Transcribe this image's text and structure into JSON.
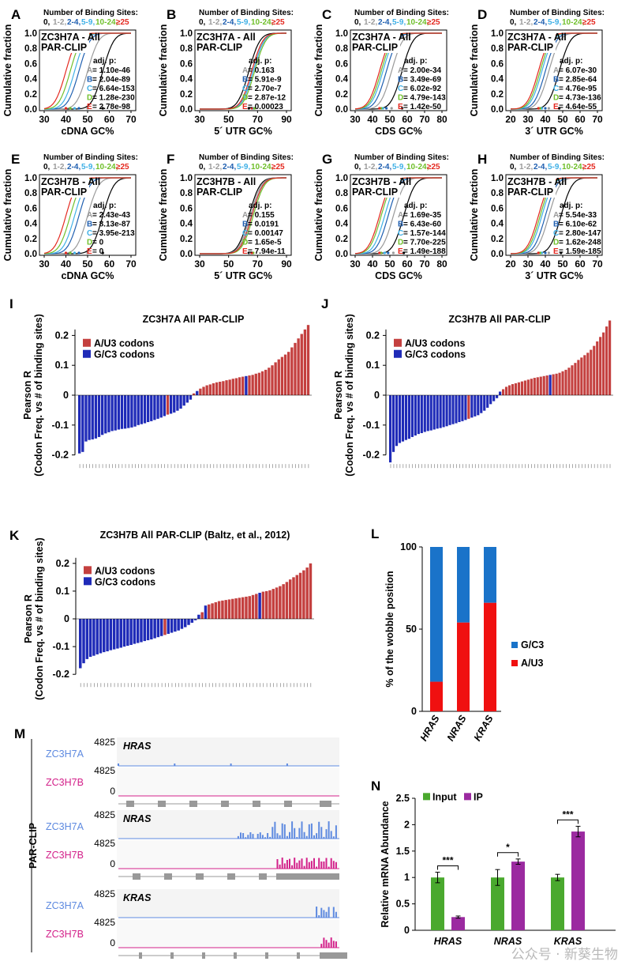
{
  "colors": {
    "zero": "#000000",
    "g1": "#9a9a9a",
    "g2": "#1f5fb0",
    "g3": "#3fb0e6",
    "g4": "#6fbf2a",
    "g5": "#e4281f",
    "red": "#c4403f",
    "blue": "#1f2bb8",
    "a_color": "#5e8ae0",
    "b_color": "#d3218a",
    "inputGreen": "#4aa92e",
    "ipPurple": "#9b2aa0",
    "stackBlue": "#1a73c9",
    "stackRed": "#f01010"
  },
  "cdf_panels": [
    {
      "id": "A",
      "label": "A",
      "legend_title": "Number of Binding Sites:",
      "legend_items": [
        "0,",
        "1-2,",
        "2-4,",
        "5-9,",
        "10-24,",
        "≥25"
      ],
      "title_lines": [
        "ZC3H7A - All",
        "PAR-CLIP"
      ],
      "xlabel": "cDNA GC%",
      "ylabel": "Cumulative fraction",
      "xticks": [
        "30",
        "40",
        "50",
        "60",
        "70"
      ],
      "yticks": [
        "0.0",
        "0.2",
        "0.4",
        "0.6",
        "0.8",
        "1.0"
      ],
      "stats_title": "adj. p:",
      "stats": [
        {
          "k": "A",
          "v": "= 1.10e-46"
        },
        {
          "k": "B",
          "v": "= 2.04e-89"
        },
        {
          "k": "C",
          "v": "= 6.64e-153"
        },
        {
          "k": "D",
          "v": "= 1.28e-230"
        },
        {
          "k": "E",
          "v": "= 2.78e-98"
        }
      ],
      "medians": [
        57,
        50,
        46,
        44,
        42,
        40
      ]
    },
    {
      "id": "B",
      "label": "B",
      "legend_title": "Number of Binding Sites:",
      "legend_items": [
        "0,",
        "1-2,",
        "2-4,",
        "5-9,",
        "10-24,",
        "≥25"
      ],
      "title_lines": [
        "ZC3H7A - All",
        "PAR-CLIP"
      ],
      "xlabel": "5´ UTR GC%",
      "ylabel": "Cumulative fraction",
      "xticks": [
        "30",
        "50",
        "70",
        "90"
      ],
      "yticks": [
        "0.0",
        "0.2",
        "0.4",
        "0.6",
        "0.8",
        "1.0"
      ],
      "stats_title": "adj. p:",
      "stats": [
        {
          "k": "A",
          "v": "= 0.163"
        },
        {
          "k": "B",
          "v": "= 5.91e-9"
        },
        {
          "k": "C",
          "v": "= 2.70e-7"
        },
        {
          "k": "D",
          "v": "= 2.87e-12"
        },
        {
          "k": "E",
          "v": "= 0.00023"
        }
      ],
      "medians": [
        64,
        66,
        67,
        67,
        68,
        66
      ]
    },
    {
      "id": "C",
      "label": "C",
      "legend_title": "Number of Binding Sites:",
      "legend_items": [
        "0,",
        "1-2,",
        "2-4,",
        "5-9,",
        "10-24,",
        "≥25"
      ],
      "title_lines": [
        "ZC3H7A - All",
        "PAR-CLIP"
      ],
      "xlabel": "CDS GC%",
      "ylabel": "Cumulative fraction",
      "xticks": [
        "30",
        "40",
        "50",
        "60",
        "70",
        "80"
      ],
      "yticks": [
        "0.0",
        "0.2",
        "0.4",
        "0.6",
        "0.8",
        "1.0"
      ],
      "stats_title": "adj. p:",
      "stats": [
        {
          "k": "A",
          "v": "= 2.00e-34"
        },
        {
          "k": "B",
          "v": "= 3.49e-69"
        },
        {
          "k": "C",
          "v": "= 6.02e-92"
        },
        {
          "k": "D",
          "v": "= 4.79e-143"
        },
        {
          "k": "E",
          "v": "= 1.42e-50"
        }
      ],
      "medians": [
        57,
        51,
        48,
        46,
        45,
        44
      ]
    },
    {
      "id": "D",
      "label": "D",
      "legend_title": "Number of Binding Sites:",
      "legend_items": [
        "0,",
        "1-2,",
        "2-4,",
        "5-9,",
        "10-24,",
        "≥25"
      ],
      "title_lines": [
        "ZC3H7A - All",
        "PAR-CLIP"
      ],
      "xlabel": "3´ UTR GC%",
      "ylabel": "Cumulative fraction",
      "xticks": [
        "20",
        "30",
        "40",
        "50",
        "60",
        "70"
      ],
      "yticks": [
        "0.0",
        "0.2",
        "0.4",
        "0.6",
        "0.8",
        "1.0"
      ],
      "stats_title": "adj. p:",
      "stats": [
        {
          "k": "A",
          "v": "= 6.07e-30"
        },
        {
          "k": "B",
          "v": "= 2.85e-64"
        },
        {
          "k": "C",
          "v": "= 4.76e-95"
        },
        {
          "k": "D",
          "v": "= 4.73e-136"
        },
        {
          "k": "E",
          "v": "= 4.64e-55"
        }
      ],
      "medians": [
        48,
        42,
        40,
        38,
        37,
        36
      ]
    },
    {
      "id": "E",
      "label": "E",
      "legend_title": "Number of Binding Sites:",
      "legend_items": [
        "0,",
        "1-2,",
        "2-4,",
        "5-9,",
        "10-24,",
        "≥25"
      ],
      "title_lines": [
        "ZC3H7B - All",
        "PAR-CLIP"
      ],
      "xlabel": "cDNA GC%",
      "ylabel": "Cumulative fraction",
      "xticks": [
        "30",
        "40",
        "50",
        "60",
        "70"
      ],
      "yticks": [
        "0.0",
        "0.2",
        "0.4",
        "0.6",
        "0.8",
        "1.0"
      ],
      "stats_title": "adj. p:",
      "stats": [
        {
          "k": "A",
          "v": "= 2.43e-43"
        },
        {
          "k": "B",
          "v": "= 8.13e-87"
        },
        {
          "k": "C",
          "v": "= 3.95e-213"
        },
        {
          "k": "D",
          "v": "= 0"
        },
        {
          "k": "E",
          "v": "= 0"
        }
      ],
      "medians": [
        57,
        50,
        46,
        44,
        42,
        40
      ]
    },
    {
      "id": "F",
      "label": "F",
      "legend_title": "Number of Binding Sites:",
      "legend_items": [
        "0,",
        "1-2,",
        "2-4,",
        "5-9,",
        "10-24,",
        "≥25"
      ],
      "title_lines": [
        "ZC3H7B - All",
        "PAR-CLIP"
      ],
      "xlabel": "5´ UTR GC%",
      "ylabel": "Cumulative fraction",
      "xticks": [
        "30",
        "50",
        "70",
        "90"
      ],
      "yticks": [
        "0.0",
        "0.2",
        "0.4",
        "0.6",
        "0.8",
        "1.0"
      ],
      "stats_title": "adj. p:",
      "stats": [
        {
          "k": "A",
          "v": "= 0.155"
        },
        {
          "k": "B",
          "v": "= 0.0191"
        },
        {
          "k": "C",
          "v": "= 0.00147"
        },
        {
          "k": "D",
          "v": "= 1.65e-5"
        },
        {
          "k": "E",
          "v": "= 7.94e-11"
        }
      ],
      "medians": [
        64,
        65,
        66,
        66,
        67,
        66
      ]
    },
    {
      "id": "G",
      "label": "G",
      "legend_title": "Number of Binding Sites:",
      "legend_items": [
        "0,",
        "1-2,",
        "2-4,",
        "5-9,",
        "10-24,",
        "≥25"
      ],
      "title_lines": [
        "ZC3H7B - All",
        "PAR-CLIP"
      ],
      "xlabel": "CDS GC%",
      "ylabel": "Cumulative fraction",
      "xticks": [
        "30",
        "40",
        "50",
        "60",
        "70",
        "80"
      ],
      "yticks": [
        "0.0",
        "0.2",
        "0.4",
        "0.6",
        "0.8",
        "1.0"
      ],
      "stats_title": "adj. p:",
      "stats": [
        {
          "k": "A",
          "v": "= 1.69e-35"
        },
        {
          "k": "B",
          "v": "= 6.43e-60"
        },
        {
          "k": "C",
          "v": "= 1.57e-144"
        },
        {
          "k": "D",
          "v": "= 7.70e-225"
        },
        {
          "k": "E",
          "v": "= 1.49e-188"
        }
      ],
      "medians": [
        58,
        52,
        49,
        47,
        45,
        44
      ]
    },
    {
      "id": "H",
      "label": "H",
      "legend_title": "Number of Binding Sites:",
      "legend_items": [
        "0,",
        "1-2,",
        "2-4,",
        "5-9,",
        "10-24,",
        "≥25"
      ],
      "title_lines": [
        "ZC3H7B - All",
        "PAR-CLIP"
      ],
      "xlabel": "3´ UTR GC%",
      "ylabel": "Cumulative fraction",
      "xticks": [
        "20",
        "30",
        "40",
        "50",
        "60",
        "70"
      ],
      "yticks": [
        "0.0",
        "0.2",
        "0.4",
        "0.6",
        "0.8",
        "1.0"
      ],
      "stats_title": "adj. p:",
      "stats": [
        {
          "k": "A",
          "v": "= 5.54e-33"
        },
        {
          "k": "B",
          "v": "= 6.10e-62"
        },
        {
          "k": "C",
          "v": "= 2.80e-147"
        },
        {
          "k": "D",
          "v": "= 1.62e-248"
        },
        {
          "k": "E",
          "v": "= 1.59e-185"
        }
      ],
      "medians": [
        49,
        42,
        40,
        38,
        37,
        36
      ]
    }
  ],
  "codon_panels": [
    {
      "id": "I",
      "label": "I",
      "title": "ZC3H7A All PAR-CLIP",
      "ylabel1": "Pearson R",
      "ylabel2": "(Codon Freq. vs # of binding sites)",
      "yticks": [
        "0.2",
        "0.1",
        "0",
        "-0.1",
        "-0.2"
      ],
      "legend": [
        "A/U3 codons",
        "G/C3 codons"
      ],
      "values": [
        -0.195,
        -0.19,
        -0.155,
        -0.15,
        -0.148,
        -0.145,
        -0.14,
        -0.133,
        -0.128,
        -0.124,
        -0.12,
        -0.118,
        -0.115,
        -0.113,
        -0.112,
        -0.11,
        -0.108,
        -0.105,
        -0.1,
        -0.097,
        -0.094,
        -0.09,
        -0.087,
        -0.083,
        -0.079,
        -0.075,
        -0.07,
        -0.065,
        -0.062,
        -0.058,
        -0.052,
        -0.045,
        -0.035,
        -0.025,
        -0.015,
        0.006,
        0.014,
        0.022,
        0.028,
        0.033,
        0.036,
        0.04,
        0.043,
        0.045,
        0.047,
        0.05,
        0.052,
        0.055,
        0.057,
        0.06,
        0.062,
        0.064,
        0.066,
        0.068,
        0.072,
        0.075,
        0.08,
        0.085,
        0.092,
        0.1,
        0.11,
        0.12,
        0.128,
        0.136,
        0.145,
        0.16,
        0.175,
        0.19,
        0.205,
        0.22,
        0.235
      ],
      "types": [
        "G",
        "G",
        "G",
        "G",
        "G",
        "G",
        "G",
        "G",
        "G",
        "G",
        "G",
        "G",
        "G",
        "G",
        "G",
        "G",
        "G",
        "G",
        "G",
        "G",
        "G",
        "G",
        "G",
        "G",
        "G",
        "G",
        "G",
        "A",
        "G",
        "G",
        "G",
        "G",
        "G",
        "G",
        "G",
        "A",
        "G",
        "A",
        "A",
        "A",
        "A",
        "A",
        "A",
        "A",
        "A",
        "A",
        "A",
        "A",
        "A",
        "A",
        "A",
        "G",
        "A",
        "A",
        "A",
        "A",
        "A",
        "A",
        "A",
        "A",
        "A",
        "A",
        "A",
        "A",
        "A",
        "A",
        "A",
        "A",
        "A",
        "A",
        "A"
      ]
    },
    {
      "id": "J",
      "label": "J",
      "title": "ZC3H7B All PAR-CLIP",
      "ylabel1": "Pearson R",
      "ylabel2": "(Codon Freq. vs # of binding sites)",
      "yticks": [
        "0.2",
        "0.1",
        "0",
        "-0.1",
        "-0.2"
      ],
      "legend": [
        "A/U3 codons",
        "G/C3 codons"
      ],
      "values": [
        -0.225,
        -0.19,
        -0.17,
        -0.16,
        -0.155,
        -0.15,
        -0.146,
        -0.14,
        -0.135,
        -0.13,
        -0.127,
        -0.123,
        -0.12,
        -0.118,
        -0.115,
        -0.112,
        -0.11,
        -0.107,
        -0.104,
        -0.1,
        -0.097,
        -0.094,
        -0.09,
        -0.087,
        -0.083,
        -0.079,
        -0.075,
        -0.071,
        -0.067,
        -0.06,
        -0.052,
        -0.042,
        -0.03,
        -0.02,
        -0.01,
        0.012,
        0.02,
        0.028,
        0.033,
        0.037,
        0.04,
        0.043,
        0.046,
        0.049,
        0.052,
        0.055,
        0.058,
        0.06,
        0.062,
        0.064,
        0.066,
        0.068,
        0.07,
        0.072,
        0.075,
        0.08,
        0.085,
        0.092,
        0.1,
        0.108,
        0.118,
        0.126,
        0.134,
        0.142,
        0.152,
        0.165,
        0.18,
        0.195,
        0.21,
        0.23,
        0.25
      ],
      "types": [
        "G",
        "G",
        "G",
        "G",
        "G",
        "G",
        "G",
        "G",
        "G",
        "G",
        "G",
        "G",
        "G",
        "G",
        "G",
        "G",
        "G",
        "G",
        "G",
        "G",
        "G",
        "G",
        "G",
        "G",
        "G",
        "A",
        "G",
        "G",
        "G",
        "G",
        "G",
        "G",
        "G",
        "G",
        "G",
        "G",
        "A",
        "A",
        "A",
        "A",
        "A",
        "A",
        "A",
        "A",
        "A",
        "A",
        "A",
        "A",
        "A",
        "A",
        "A",
        "G",
        "A",
        "A",
        "A",
        "A",
        "A",
        "A",
        "A",
        "A",
        "A",
        "A",
        "A",
        "A",
        "A",
        "A",
        "A",
        "A",
        "A",
        "A",
        "A"
      ]
    },
    {
      "id": "K",
      "label": "K",
      "title": "ZC3H7B All PAR-CLIP (Baltz, et al., 2012)",
      "ylabel1": "Pearson R",
      "ylabel2": "(Codon Freq. vs # of binding sites)",
      "yticks": [
        "0.2",
        "0.1",
        "0",
        "-0.1",
        "-0.2"
      ],
      "legend": [
        "A/U3 codons",
        "G/C3 codons"
      ],
      "values": [
        -0.178,
        -0.16,
        -0.145,
        -0.137,
        -0.133,
        -0.128,
        -0.124,
        -0.12,
        -0.117,
        -0.113,
        -0.11,
        -0.107,
        -0.104,
        -0.1,
        -0.097,
        -0.094,
        -0.09,
        -0.087,
        -0.084,
        -0.08,
        -0.077,
        -0.074,
        -0.07,
        -0.066,
        -0.062,
        -0.058,
        -0.054,
        -0.05,
        -0.046,
        -0.042,
        -0.036,
        -0.03,
        -0.022,
        -0.014,
        -0.005,
        0.015,
        0.024,
        0.048,
        0.052,
        0.056,
        0.06,
        0.064,
        0.066,
        0.068,
        0.07,
        0.072,
        0.074,
        0.076,
        0.078,
        0.08,
        0.082,
        0.086,
        0.09,
        0.094,
        0.098,
        0.1,
        0.103,
        0.108,
        0.113,
        0.118,
        0.125,
        0.133,
        0.142,
        0.15,
        0.158,
        0.166,
        0.175,
        0.185,
        0.2
      ],
      "types": [
        "G",
        "G",
        "G",
        "G",
        "G",
        "G",
        "G",
        "G",
        "G",
        "G",
        "G",
        "G",
        "G",
        "G",
        "G",
        "G",
        "G",
        "G",
        "G",
        "G",
        "G",
        "G",
        "G",
        "G",
        "G",
        "A",
        "G",
        "G",
        "G",
        "G",
        "G",
        "G",
        "G",
        "G",
        "G",
        "G",
        "A",
        "G",
        "A",
        "A",
        "A",
        "A",
        "A",
        "A",
        "A",
        "A",
        "A",
        "A",
        "A",
        "A",
        "A",
        "A",
        "A",
        "G",
        "A",
        "A",
        "A",
        "A",
        "A",
        "A",
        "A",
        "A",
        "A",
        "A",
        "A",
        "A",
        "A",
        "A",
        "A"
      ]
    }
  ],
  "panel_L": {
    "label": "L",
    "ylabel": "% of the wobble position",
    "yticks": [
      "100",
      "50",
      "0"
    ],
    "categories": [
      "HRAS",
      "NRAS",
      "KRAS"
    ],
    "au3": [
      18,
      54,
      66
    ],
    "legend": [
      "G/C3",
      "A/U3"
    ]
  },
  "panel_M": {
    "label": "M",
    "side_label": "PAR-CLIP",
    "genes": [
      {
        "name": "HRAS",
        "track_a": "ZC3H7A",
        "track_b": "ZC3H7B",
        "max": "4825",
        "zero": "0"
      },
      {
        "name": "NRAS",
        "track_a": "ZC3H7A",
        "track_b": "ZC3H7B",
        "max": "4825",
        "zero": "0"
      },
      {
        "name": "KRAS",
        "track_a": "ZC3H7A",
        "track_b": "ZC3H7B",
        "max": "4825",
        "zero": "0"
      }
    ]
  },
  "panel_N": {
    "label": "N",
    "ylabel": "Relative mRNA Abundance",
    "yticks": [
      "0",
      "0.5",
      "1",
      "1.5",
      "2",
      "2.5"
    ],
    "legend": [
      "Input",
      "IP"
    ],
    "categories": [
      "HRAS",
      "NRAS",
      "KRAS"
    ],
    "input": [
      1.0,
      1.0,
      1.0
    ],
    "input_err": [
      0.1,
      0.15,
      0.06
    ],
    "ip": [
      0.25,
      1.3,
      1.87
    ],
    "ip_err": [
      0.02,
      0.05,
      0.1
    ],
    "sig": [
      "***",
      "*",
      "***"
    ]
  },
  "watermark": "公众号 · 新葵生物"
}
